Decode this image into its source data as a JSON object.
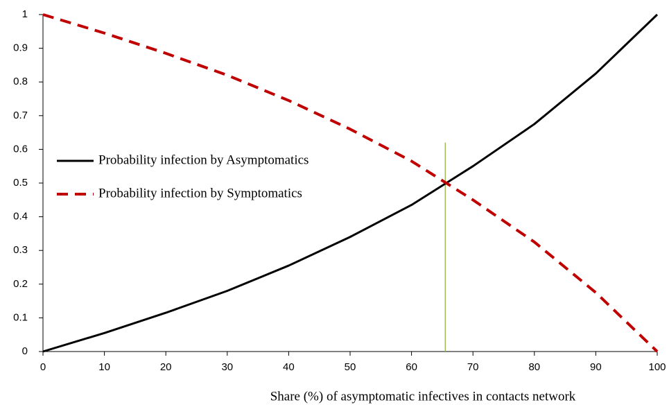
{
  "chart_data": {
    "type": "line",
    "x_label": "Share (%) of asymptomatic infectives in contacts network",
    "x": [
      0,
      10,
      20,
      30,
      40,
      50,
      60,
      70,
      80,
      90,
      100
    ],
    "series": [
      {
        "name": "Probability infection by Asymptomatics",
        "color": "#000000",
        "dash": false,
        "values": [
          0,
          0.055,
          0.115,
          0.18,
          0.255,
          0.34,
          0.435,
          0.55,
          0.675,
          0.825,
          1
        ]
      },
      {
        "name": "Probability infection by Symptomatics",
        "color": "#c00000",
        "dash": true,
        "values": [
          1,
          0.945,
          0.885,
          0.82,
          0.745,
          0.66,
          0.565,
          0.45,
          0.325,
          0.175,
          0
        ]
      }
    ],
    "vline": {
      "x": 65.5,
      "y_top": 0.62,
      "color": "#9bbb59"
    },
    "xlim": [
      0,
      100
    ],
    "xticks": [
      0,
      10,
      20,
      30,
      40,
      50,
      60,
      70,
      80,
      90,
      100
    ],
    "ylim": [
      0,
      1
    ],
    "yticks": [
      0,
      0.1,
      0.2,
      0.3,
      0.4,
      0.5,
      0.6,
      0.7,
      0.8,
      0.9,
      1
    ],
    "legend": "left"
  }
}
